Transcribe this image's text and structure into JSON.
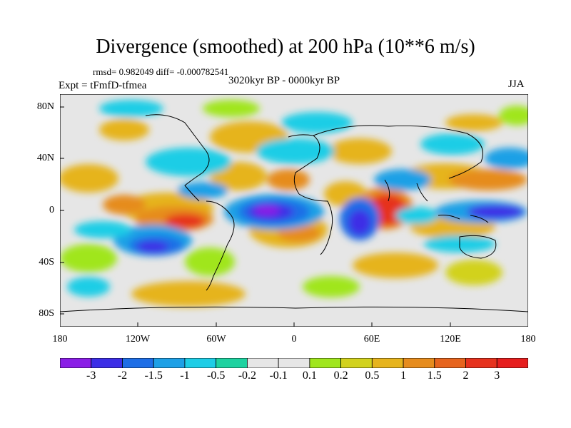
{
  "title": "Divergence (smoothed) at 200 hPa (10**6 m/s)",
  "stats": "rmsd= 0.982049 diff= -0.000782541",
  "expt": "Expt = tFmfD-tfmea",
  "period": "3020kyr BP - 0000kyr BP",
  "season": "JJA",
  "lat_labels": [
    "80N",
    "40N",
    "0",
    "40S",
    "80S"
  ],
  "lon_labels": [
    "180",
    "120W",
    "60W",
    "0",
    "60E",
    "120E",
    "180"
  ],
  "colorbar": {
    "colors": [
      "#8a1ee6",
      "#3c2ee6",
      "#1e6ee6",
      "#1ea0e6",
      "#1ecde6",
      "#1ed2a0",
      "#e6e6e6",
      "#a0e61e",
      "#d2d21e",
      "#e6b41e",
      "#e68c1e",
      "#e6641e",
      "#e6321e",
      "#e61e1e"
    ],
    "labels": [
      "-3",
      "-2",
      "-1.5",
      "-1",
      "-0.5",
      "-0.2",
      "-0.1",
      "0.1",
      "0.2",
      "0.5",
      "1",
      "1.5",
      "2",
      "3"
    ]
  }
}
